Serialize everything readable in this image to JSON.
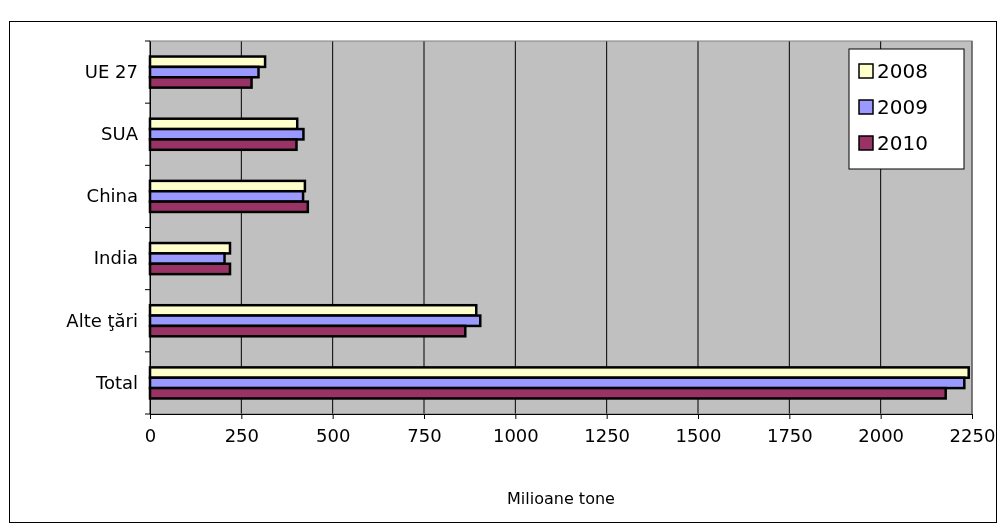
{
  "chart_data": {
    "type": "bar",
    "orientation": "horizontal",
    "xlabel": "Milioane tone",
    "categories": [
      "UE 27",
      "SUA",
      "China",
      "India",
      "Alte ţări",
      "Total"
    ],
    "series": [
      {
        "name": "2008",
        "color": "#ffffcc",
        "values": [
          315,
          403,
          424,
          219,
          893,
          2241
        ]
      },
      {
        "name": "2009",
        "color": "#9999ff",
        "values": [
          297,
          420,
          419,
          204,
          904,
          2229
        ]
      },
      {
        "name": "2010",
        "color": "#993366",
        "values": [
          278,
          401,
          432,
          219,
          863,
          2178
        ]
      }
    ],
    "xlim": [
      0,
      2250
    ],
    "xticks": [
      0,
      250,
      500,
      750,
      1000,
      1250,
      1500,
      1750,
      2000,
      2250
    ],
    "grid": "x",
    "legend": "top right"
  }
}
